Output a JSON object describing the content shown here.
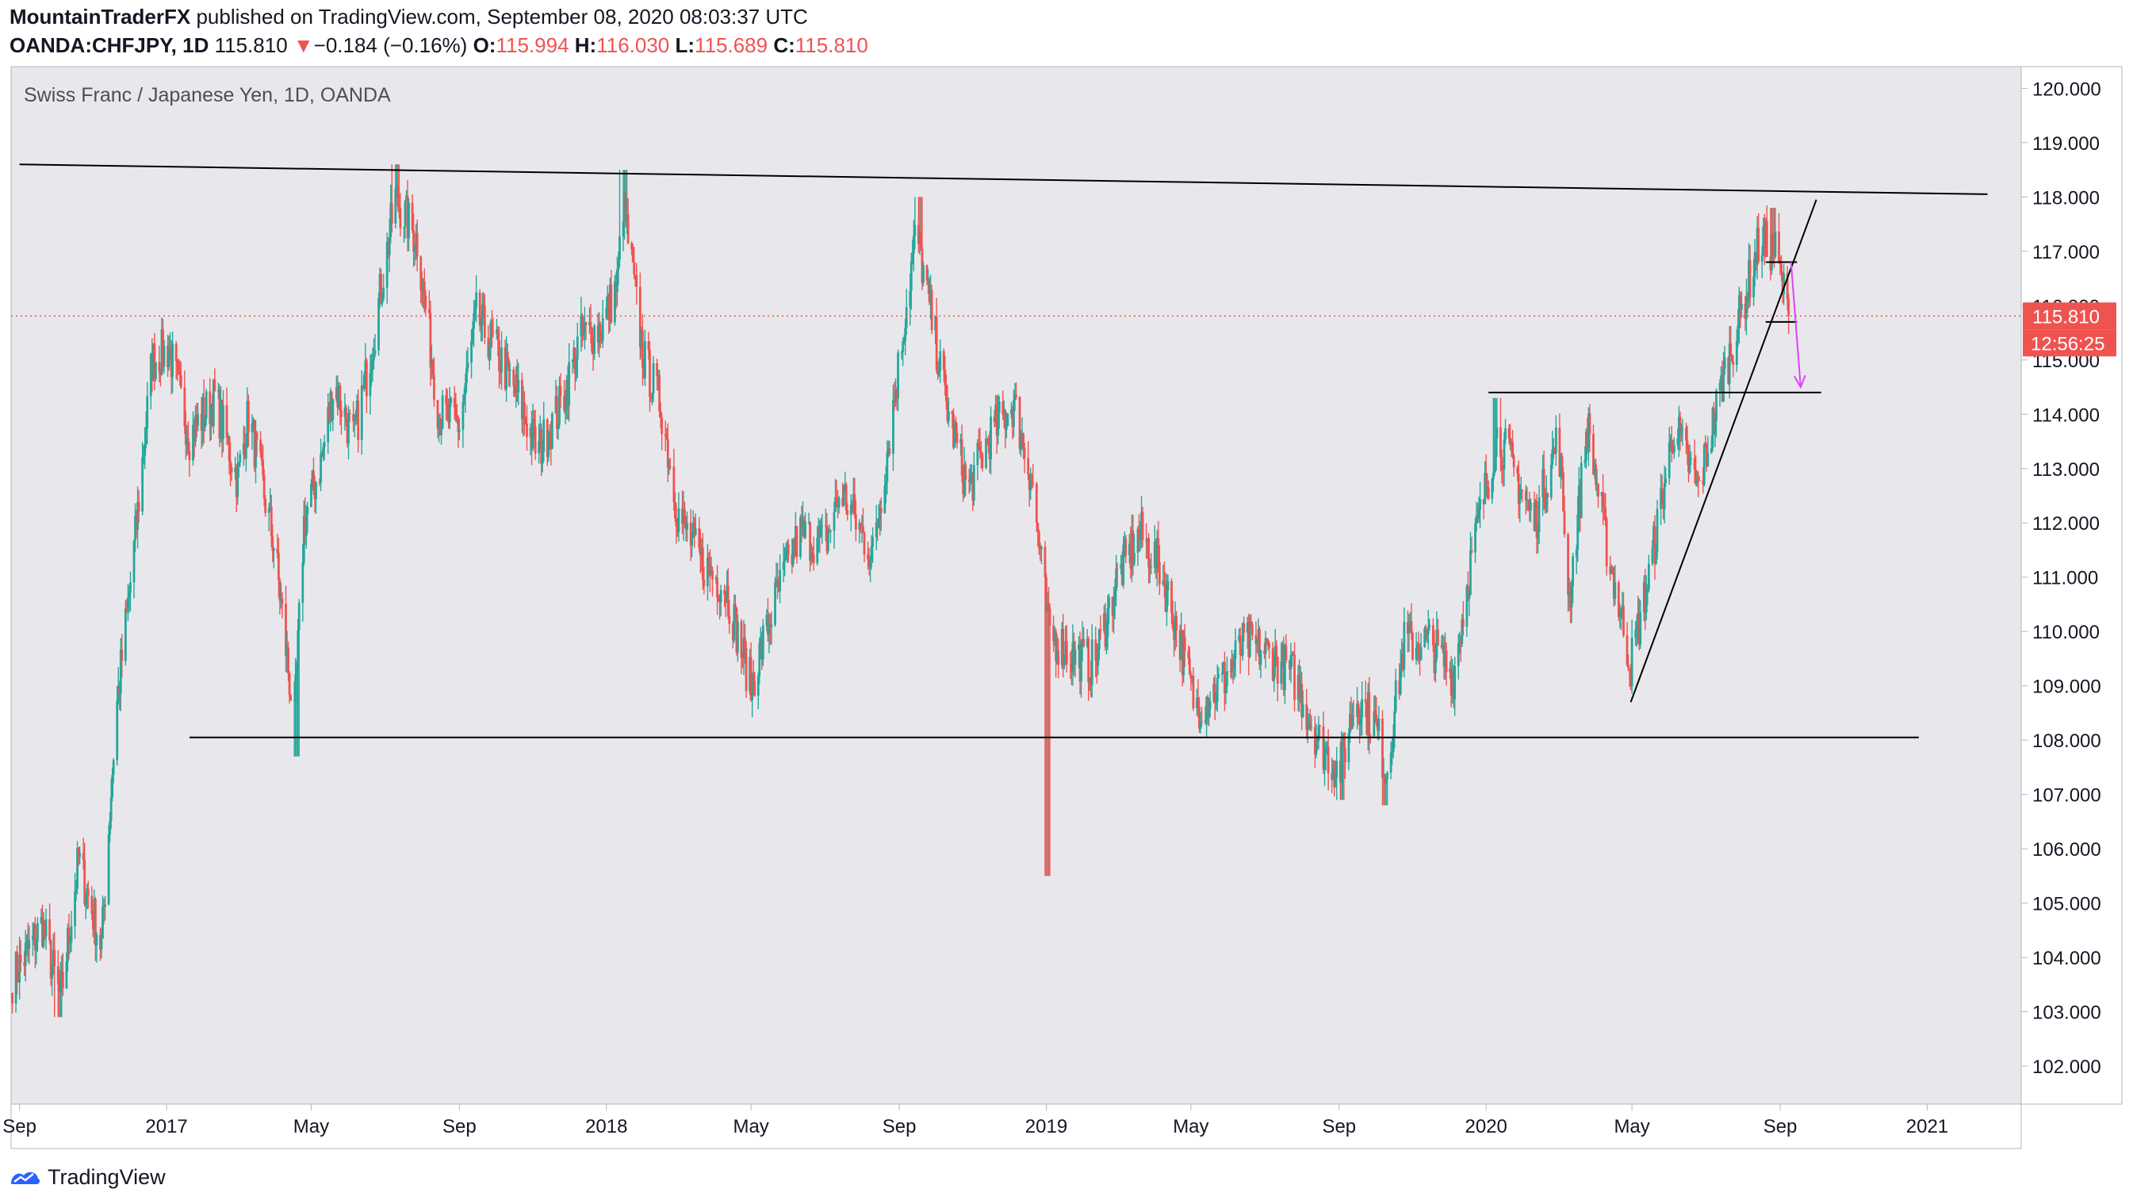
{
  "header": {
    "author": "MountainTraderFX",
    "published_text": " published on TradingView.com, September 08, 2020 08:03:37 UTC",
    "symbol": "OANDA:CHFJPY, 1D",
    "last": "115.810",
    "change_arrow": "▼",
    "change": "−0.184 (−0.16%)",
    "open_label": "O:",
    "open": "115.994",
    "high_label": "H:",
    "high": "116.030",
    "low_label": "L:",
    "low": "115.689",
    "close_label": "C:",
    "close": "115.810"
  },
  "footer": {
    "brand": "TradingView",
    "logo_icon": "tradingview-logo-icon"
  },
  "colors": {
    "up": "#26a69a",
    "down": "#ef5350",
    "price_line": "#ef5350",
    "arrow": "#e040fb",
    "background": "#e8e8ec",
    "trendline": "#000000"
  },
  "chart_data": {
    "type": "candlestick",
    "title": "Swiss Franc / Japanese Yen, 1D, OANDA",
    "interval": "1D",
    "y_axis": {
      "ticks": [
        "102.000",
        "103.000",
        "104.000",
        "105.000",
        "106.000",
        "107.000",
        "108.000",
        "109.000",
        "110.000",
        "111.000",
        "112.000",
        "113.000",
        "114.000",
        "115.000",
        "116.000",
        "117.000",
        "118.000",
        "119.000",
        "120.000"
      ],
      "range": [
        101.3,
        120.4
      ],
      "position": "right"
    },
    "x_axis": {
      "ticks": [
        {
          "label": "Sep",
          "date": "2016-09-01"
        },
        {
          "label": "2017",
          "date": "2017-01-01"
        },
        {
          "label": "May",
          "date": "2017-05-01"
        },
        {
          "label": "Sep",
          "date": "2017-09-01"
        },
        {
          "label": "2018",
          "date": "2018-01-01"
        },
        {
          "label": "May",
          "date": "2018-05-01"
        },
        {
          "label": "Sep",
          "date": "2018-09-01"
        },
        {
          "label": "2019",
          "date": "2019-01-01"
        },
        {
          "label": "May",
          "date": "2019-05-01"
        },
        {
          "label": "Sep",
          "date": "2019-09-01"
        },
        {
          "label": "2020",
          "date": "2020-01-01"
        },
        {
          "label": "May",
          "date": "2020-05-01"
        },
        {
          "label": "Sep",
          "date": "2020-09-01"
        },
        {
          "label": "2021",
          "date": "2021-01-01"
        }
      ],
      "range": [
        "2016-08-25",
        "2021-03-20"
      ]
    },
    "price_label": {
      "value": 115.81,
      "text": "115.810",
      "countdown": "12:56:25"
    },
    "series_anchors": [
      {
        "date": "2016-08-26",
        "value": 103.6
      },
      {
        "date": "2016-09-20",
        "value": 104.6
      },
      {
        "date": "2016-10-05",
        "value": 103.2
      },
      {
        "date": "2016-10-20",
        "value": 105.8
      },
      {
        "date": "2016-11-08",
        "value": 104.2
      },
      {
        "date": "2016-11-20",
        "value": 108.5
      },
      {
        "date": "2016-12-05",
        "value": 111.5
      },
      {
        "date": "2016-12-20",
        "value": 115.0
      },
      {
        "date": "2017-01-03",
        "value": 115.2
      },
      {
        "date": "2017-01-20",
        "value": 113.6
      },
      {
        "date": "2017-02-10",
        "value": 114.3
      },
      {
        "date": "2017-03-01",
        "value": 112.8
      },
      {
        "date": "2017-03-10",
        "value": 114.0
      },
      {
        "date": "2017-04-01",
        "value": 111.5
      },
      {
        "date": "2017-04-17",
        "value": 108.3
      },
      {
        "date": "2017-04-25",
        "value": 112.0
      },
      {
        "date": "2017-05-10",
        "value": 113.2
      },
      {
        "date": "2017-05-20",
        "value": 114.6
      },
      {
        "date": "2017-06-05",
        "value": 113.5
      },
      {
        "date": "2017-06-20",
        "value": 115.2
      },
      {
        "date": "2017-07-10",
        "value": 118.0
      },
      {
        "date": "2017-07-28",
        "value": 117.2
      },
      {
        "date": "2017-08-15",
        "value": 114.0
      },
      {
        "date": "2017-09-01",
        "value": 113.8
      },
      {
        "date": "2017-09-15",
        "value": 115.8
      },
      {
        "date": "2017-10-01",
        "value": 115.2
      },
      {
        "date": "2017-10-20",
        "value": 114.3
      },
      {
        "date": "2017-11-05",
        "value": 113.3
      },
      {
        "date": "2017-11-25",
        "value": 114.2
      },
      {
        "date": "2017-12-10",
        "value": 115.4
      },
      {
        "date": "2017-12-28",
        "value": 115.6
      },
      {
        "date": "2018-01-10",
        "value": 116.4
      },
      {
        "date": "2018-01-15",
        "value": 117.9
      },
      {
        "date": "2018-02-01",
        "value": 115.0
      },
      {
        "date": "2018-02-15",
        "value": 114.2
      },
      {
        "date": "2018-03-01",
        "value": 112.2
      },
      {
        "date": "2018-03-20",
        "value": 111.3
      },
      {
        "date": "2018-04-10",
        "value": 110.8
      },
      {
        "date": "2018-05-01",
        "value": 109.0
      },
      {
        "date": "2018-05-20",
        "value": 110.5
      },
      {
        "date": "2018-06-10",
        "value": 111.8
      },
      {
        "date": "2018-07-01",
        "value": 111.6
      },
      {
        "date": "2018-07-15",
        "value": 112.6
      },
      {
        "date": "2018-08-10",
        "value": 111.4
      },
      {
        "date": "2018-08-25",
        "value": 113.8
      },
      {
        "date": "2018-09-15",
        "value": 117.4
      },
      {
        "date": "2018-10-10",
        "value": 114.2
      },
      {
        "date": "2018-10-28",
        "value": 112.6
      },
      {
        "date": "2018-11-15",
        "value": 113.6
      },
      {
        "date": "2018-12-05",
        "value": 114.2
      },
      {
        "date": "2018-12-20",
        "value": 112.8
      },
      {
        "date": "2019-01-03",
        "value": 110.0
      },
      {
        "date": "2019-01-20",
        "value": 109.6
      },
      {
        "date": "2019-02-10",
        "value": 109.4
      },
      {
        "date": "2019-03-01",
        "value": 111.0
      },
      {
        "date": "2019-03-20",
        "value": 111.8
      },
      {
        "date": "2019-04-05",
        "value": 111.2
      },
      {
        "date": "2019-04-20",
        "value": 110.0
      },
      {
        "date": "2019-05-05",
        "value": 108.6
      },
      {
        "date": "2019-05-25",
        "value": 109.0
      },
      {
        "date": "2019-06-15",
        "value": 109.8
      },
      {
        "date": "2019-07-05",
        "value": 109.6
      },
      {
        "date": "2019-07-25",
        "value": 109.2
      },
      {
        "date": "2019-08-15",
        "value": 108.0
      },
      {
        "date": "2019-09-01",
        "value": 107.4
      },
      {
        "date": "2019-09-15",
        "value": 108.8
      },
      {
        "date": "2019-10-01",
        "value": 108.3
      },
      {
        "date": "2019-10-10",
        "value": 107.4
      },
      {
        "date": "2019-10-25",
        "value": 109.8
      },
      {
        "date": "2019-11-15",
        "value": 109.8
      },
      {
        "date": "2019-12-05",
        "value": 109.2
      },
      {
        "date": "2019-12-20",
        "value": 111.4
      },
      {
        "date": "2020-01-10",
        "value": 113.6
      },
      {
        "date": "2020-01-20",
        "value": 113.2
      },
      {
        "date": "2020-02-10",
        "value": 112.0
      },
      {
        "date": "2020-03-01",
        "value": 113.6
      },
      {
        "date": "2020-03-10",
        "value": 110.6
      },
      {
        "date": "2020-03-25",
        "value": 113.8
      },
      {
        "date": "2020-04-10",
        "value": 111.6
      },
      {
        "date": "2020-04-30",
        "value": 109.4
      },
      {
        "date": "2020-05-15",
        "value": 111.0
      },
      {
        "date": "2020-06-05",
        "value": 113.8
      },
      {
        "date": "2020-06-25",
        "value": 112.6
      },
      {
        "date": "2020-07-15",
        "value": 114.6
      },
      {
        "date": "2020-08-01",
        "value": 116.0
      },
      {
        "date": "2020-08-15",
        "value": 117.2
      },
      {
        "date": "2020-08-28",
        "value": 117.0
      },
      {
        "date": "2020-09-08",
        "value": 115.81
      }
    ],
    "extremes": [
      {
        "date": "2016-10-03",
        "low": 102.9
      },
      {
        "date": "2017-04-18",
        "low": 107.7
      },
      {
        "date": "2017-07-10",
        "high": 118.6
      },
      {
        "date": "2018-01-15",
        "high": 118.5
      },
      {
        "date": "2018-09-17",
        "high": 118.0
      },
      {
        "date": "2019-01-03",
        "low": 105.5
      },
      {
        "date": "2019-09-02",
        "low": 106.9
      },
      {
        "date": "2019-10-08",
        "low": 106.8
      },
      {
        "date": "2020-01-10",
        "high": 114.3
      },
      {
        "date": "2020-08-27",
        "high": 117.8
      }
    ],
    "drawings": [
      {
        "type": "trendline",
        "from": {
          "date": "2016-09-01",
          "value": 118.6
        },
        "to": {
          "date": "2021-02-20",
          "value": 118.05
        }
      },
      {
        "type": "horizontal",
        "from": {
          "date": "2017-01-20",
          "value": 108.05
        },
        "to": {
          "date": "2020-12-25",
          "value": 108.05
        }
      },
      {
        "type": "horizontal",
        "from": {
          "date": "2020-01-03",
          "value": 114.4
        },
        "to": {
          "date": "2020-10-05",
          "value": 114.4
        }
      },
      {
        "type": "trendline",
        "from": {
          "date": "2020-04-30",
          "value": 108.7
        },
        "to": {
          "date": "2020-10-01",
          "value": 117.95
        }
      },
      {
        "type": "horizontal",
        "from": {
          "date": "2020-08-20",
          "value": 116.8
        },
        "to": {
          "date": "2020-09-15",
          "value": 116.8
        }
      },
      {
        "type": "horizontal",
        "from": {
          "date": "2020-08-20",
          "value": 115.7
        },
        "to": {
          "date": "2020-09-15",
          "value": 115.7
        }
      }
    ],
    "projection_arrow": [
      {
        "date": "2020-09-10",
        "value": 116.8
      },
      {
        "date": "2020-09-18",
        "value": 114.5
      }
    ],
    "grid": false,
    "legend": "top-left"
  }
}
